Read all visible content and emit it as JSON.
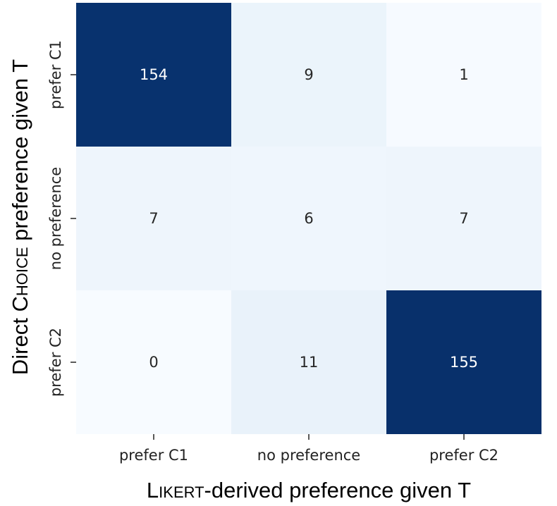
{
  "chart_data": {
    "type": "heatmap",
    "x_categories": [
      "prefer C1",
      "no preference",
      "prefer C2"
    ],
    "y_categories": [
      "prefer C1",
      "no preference",
      "prefer C2"
    ],
    "values": [
      [
        154,
        9,
        1
      ],
      [
        7,
        6,
        7
      ],
      [
        0,
        11,
        155
      ]
    ],
    "xlabel": {
      "lead_cap": "L",
      "smallcaps": "IKERT",
      "rest": "-derived preference given T"
    },
    "ylabel": {
      "before": "Direct ",
      "lead_cap": "C",
      "smallcaps": "HOICE",
      "rest": " preference given T"
    },
    "colormap": "Blues",
    "color_low": "#f7fbff",
    "color_high": "#08306b",
    "colorbar": false,
    "grid": false
  }
}
